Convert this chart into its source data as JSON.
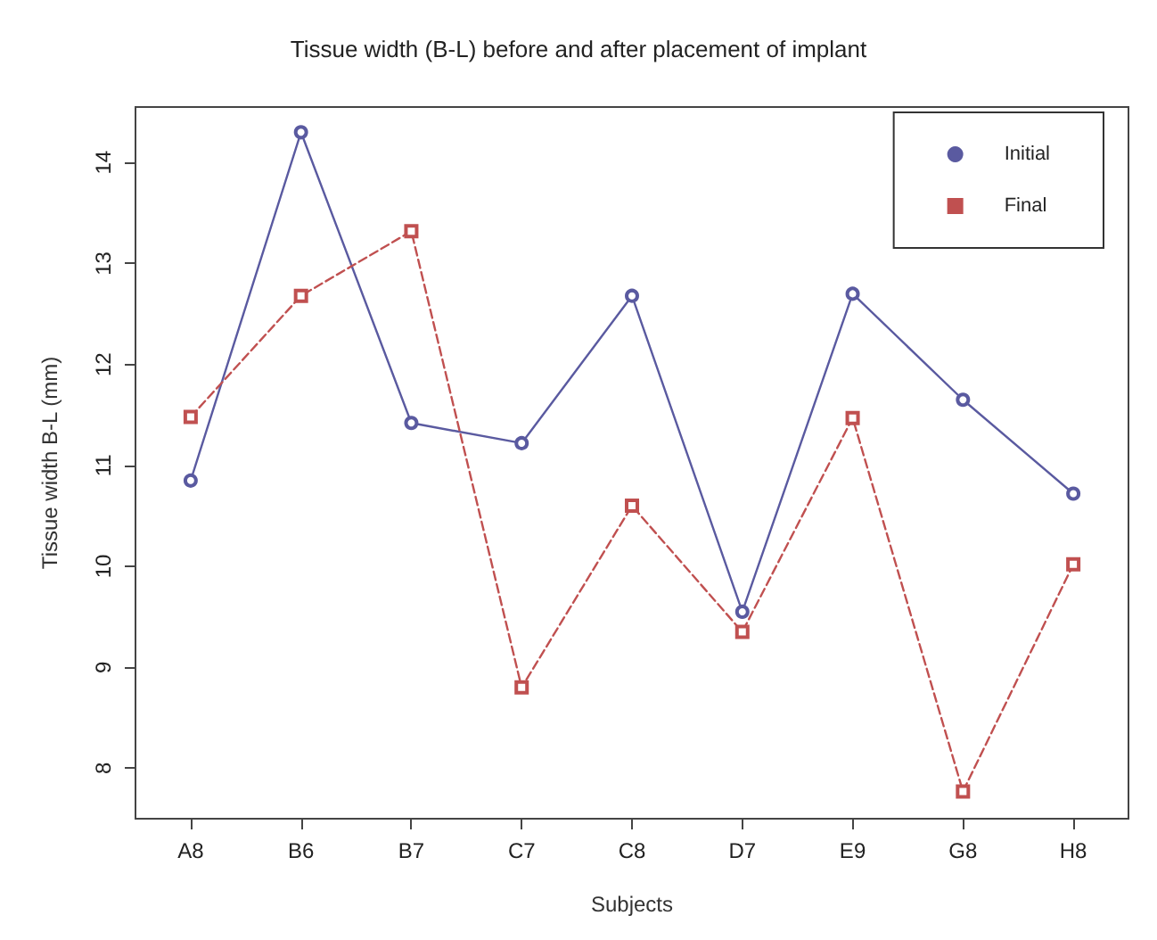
{
  "chart_data": {
    "type": "line",
    "title": "Tissue width (B-L) before and after placement of implant",
    "xlabel": "Subjects",
    "ylabel": "Tissue width B-L (mm)",
    "categories": [
      "A8",
      "B6",
      "B7",
      "C7",
      "C8",
      "D7",
      "E9",
      "G8",
      "H8"
    ],
    "series": [
      {
        "name": "Initial",
        "color": "#5a5aa0",
        "marker": "circle",
        "line_style": "solid",
        "values": [
          10.85,
          14.3,
          11.42,
          11.22,
          12.68,
          9.55,
          12.7,
          11.65,
          10.72
        ]
      },
      {
        "name": "Final",
        "color": "#c05050",
        "marker": "square",
        "line_style": "dashed",
        "values": [
          11.48,
          12.68,
          13.32,
          8.8,
          10.6,
          9.35,
          11.47,
          7.77,
          10.02
        ]
      }
    ],
    "ylim": [
      7.5,
      14.55
    ],
    "yticks": [
      8,
      9,
      10,
      11,
      12,
      13,
      14
    ],
    "grid": false,
    "legend": "top right"
  }
}
